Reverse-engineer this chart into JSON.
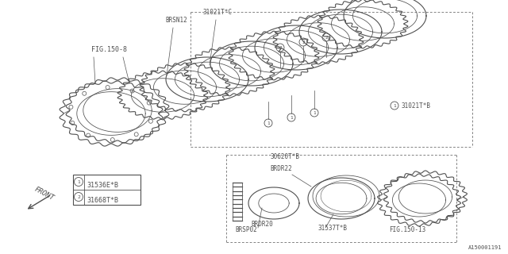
{
  "bg_color": "#ffffff",
  "line_color": "#505050",
  "watermark": "A150001191",
  "labels": {
    "fig150_8": "FIG.150-8",
    "brsn12": "BRSN12",
    "part31021tc": "31021T*C",
    "part31021tb": "31021T*B",
    "part30620tb": "30620T*B",
    "brdr22": "BRDR22",
    "brdr20": "BRDR20",
    "brsp02": "BRSP02",
    "part31537tb": "31537T*B",
    "fig150_13": "FIG.150-13",
    "legend1": "31536E*B",
    "legend2": "31668T*B",
    "front": "FRONT"
  }
}
